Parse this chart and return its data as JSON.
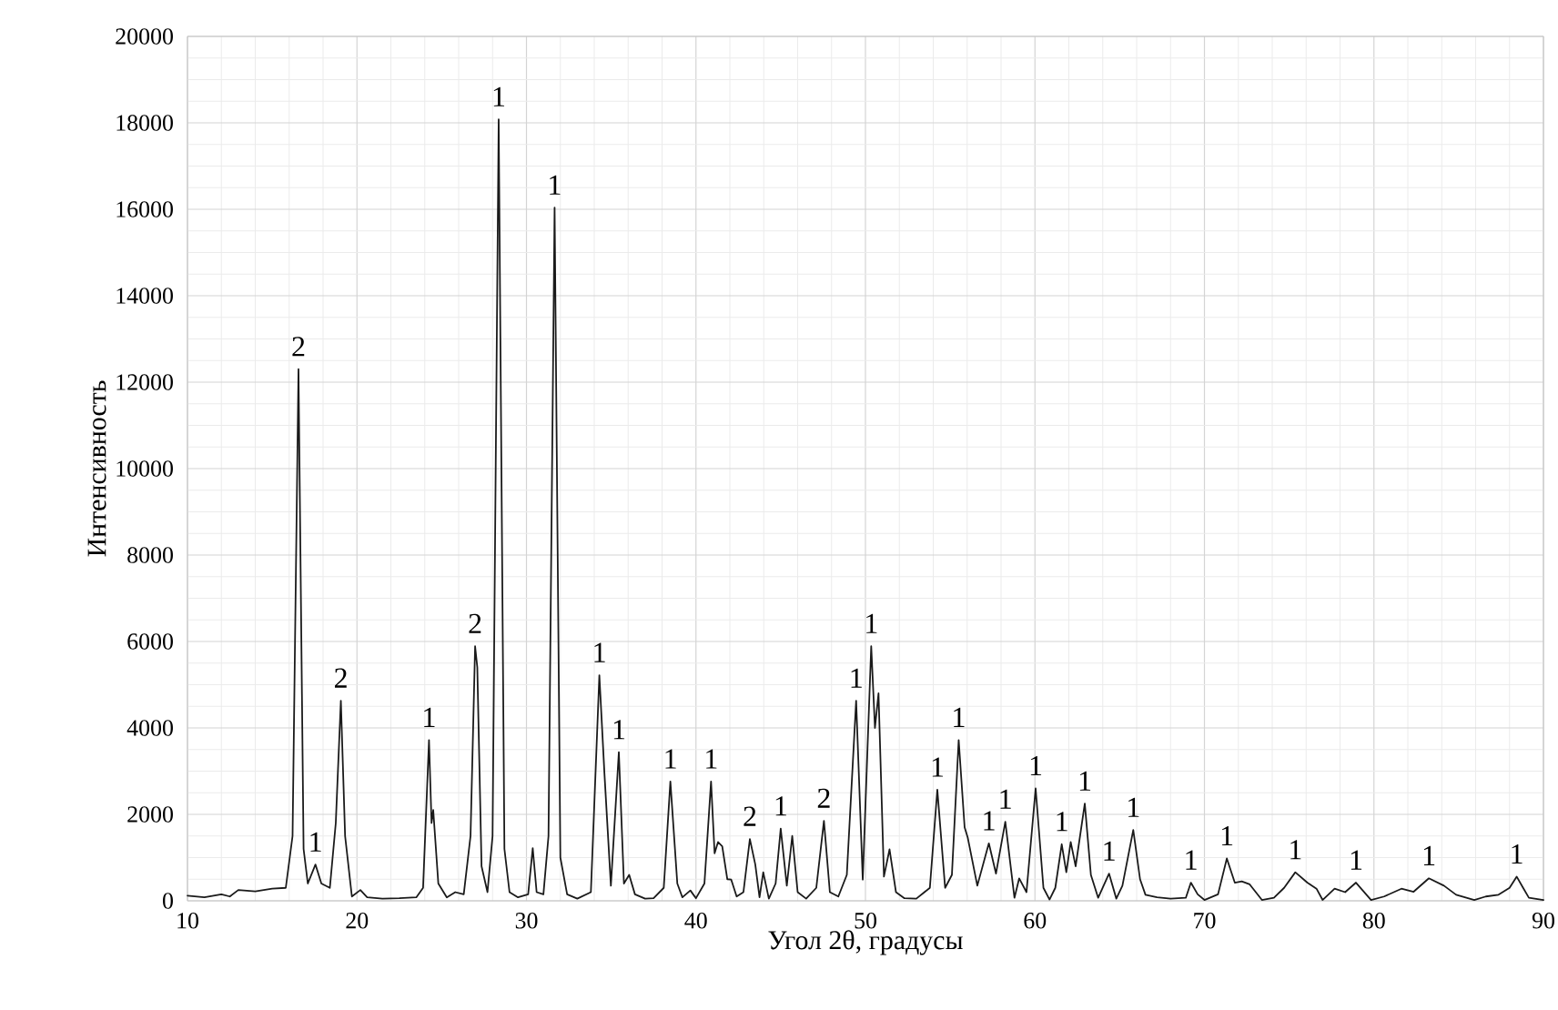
{
  "chart_data": {
    "type": "line",
    "xlabel": "Угол 2θ, градусы",
    "ylabel": "Интенсивность",
    "color": "#1a1a1a",
    "grid": true,
    "xlim": [
      10,
      90
    ],
    "ylim": [
      0,
      20000
    ],
    "xticks": [
      10,
      20,
      30,
      40,
      50,
      60,
      70,
      80,
      90
    ],
    "yticks": [
      0,
      2000,
      4000,
      6000,
      8000,
      10000,
      12000,
      14000,
      16000,
      18000,
      20000
    ],
    "x": [
      10,
      11,
      12,
      12.5,
      13,
      14,
      15,
      15.8,
      16.2,
      16.55,
      16.85,
      17.1,
      17.55,
      17.9,
      18.4,
      18.75,
      19.05,
      19.3,
      19.7,
      20.2,
      20.6,
      21.5,
      22.5,
      23.5,
      23.9,
      24.25,
      24.4,
      24.5,
      24.8,
      25.3,
      25.8,
      26.3,
      26.7,
      26.97,
      27.1,
      27.35,
      27.7,
      28.0,
      28.36,
      28.7,
      29.0,
      29.5,
      30.1,
      30.37,
      30.6,
      31.0,
      31.3,
      31.66,
      32.0,
      32.4,
      33.0,
      33.8,
      34.3,
      34.6,
      34.98,
      35.45,
      35.75,
      36.06,
      36.4,
      37.0,
      37.5,
      38.1,
      38.49,
      38.9,
      39.2,
      39.67,
      40.0,
      40.5,
      40.89,
      41.1,
      41.3,
      41.55,
      41.85,
      42.08,
      42.4,
      42.8,
      43.18,
      43.5,
      43.75,
      43.97,
      44.3,
      44.7,
      45.0,
      45.36,
      45.68,
      46.0,
      46.5,
      47.1,
      47.55,
      47.9,
      48.4,
      48.9,
      49.45,
      49.84,
      50.34,
      50.56,
      50.77,
      51.09,
      51.42,
      51.8,
      52.3,
      53.0,
      53.8,
      54.24,
      54.7,
      55.1,
      55.5,
      55.85,
      56.03,
      56.6,
      57.28,
      57.7,
      58.25,
      58.79,
      59.07,
      59.5,
      60.04,
      60.5,
      60.86,
      61.2,
      61.58,
      61.85,
      62.11,
      62.4,
      62.94,
      63.3,
      63.73,
      64.37,
      64.8,
      65.16,
      65.8,
      66.2,
      66.52,
      67.2,
      68.0,
      68.9,
      69.2,
      69.6,
      70.0,
      70.8,
      71.32,
      71.79,
      72.2,
      72.67,
      73.39,
      74.1,
      74.7,
      75.36,
      76.07,
      76.61,
      76.97,
      77.68,
      78.3,
      78.94,
      79.83,
      80.6,
      81.62,
      82.34,
      83.24,
      84.13,
      84.85,
      85.92,
      86.6,
      87.35,
      88.0,
      88.42,
      88.8,
      89.14,
      90
    ],
    "values": [
      120,
      80,
      150,
      100,
      250,
      220,
      280,
      300,
      1500,
      12300,
      1200,
      400,
      840,
      400,
      300,
      1800,
      4630,
      1500,
      100,
      250,
      80,
      50,
      60,
      80,
      300,
      3720,
      1800,
      2100,
      400,
      80,
      200,
      150,
      1500,
      5890,
      5400,
      800,
      200,
      1500,
      18080,
      1200,
      200,
      80,
      150,
      1220,
      200,
      150,
      1500,
      16040,
      1000,
      150,
      50,
      200,
      5220,
      2950,
      350,
      3440,
      400,
      600,
      150,
      50,
      60,
      300,
      2760,
      400,
      80,
      240,
      60,
      400,
      2760,
      1100,
      1360,
      1260,
      500,
      490,
      100,
      200,
      1430,
      840,
      80,
      660,
      50,
      400,
      1670,
      350,
      1500,
      200,
      50,
      300,
      1850,
      200,
      100,
      600,
      4630,
      490,
      5890,
      4000,
      4800,
      560,
      1190,
      200,
      60,
      50,
      300,
      2570,
      300,
      600,
      3720,
      1700,
      1470,
      350,
      1330,
      630,
      1830,
      70,
      520,
      200,
      2600,
      300,
      30,
      300,
      1310,
      660,
      1360,
      800,
      2250,
      600,
      70,
      630,
      50,
      350,
      1640,
      500,
      140,
      80,
      50,
      70,
      420,
      150,
      20,
      150,
      980,
      420,
      450,
      380,
      20,
      70,
      300,
      660,
      420,
      280,
      20,
      280,
      200,
      420,
      20,
      100,
      280,
      210,
      520,
      350,
      140,
      20,
      100,
      140,
      300,
      560,
      300,
      70,
      20
    ],
    "annotations": [
      {
        "text": "2",
        "x": 16.55,
        "y": 12300
      },
      {
        "text": "1",
        "x": 17.55,
        "y": 840
      },
      {
        "text": "2",
        "x": 19.05,
        "y": 4630
      },
      {
        "text": "1",
        "x": 24.25,
        "y": 3720
      },
      {
        "text": "2",
        "x": 26.97,
        "y": 5890
      },
      {
        "text": "1",
        "x": 28.36,
        "y": 18080
      },
      {
        "text": "1",
        "x": 31.66,
        "y": 16040
      },
      {
        "text": "1",
        "x": 34.3,
        "y": 5220
      },
      {
        "text": "1",
        "x": 35.45,
        "y": 3440
      },
      {
        "text": "1",
        "x": 38.49,
        "y": 2760
      },
      {
        "text": "1",
        "x": 40.89,
        "y": 2760
      },
      {
        "text": "2",
        "x": 43.18,
        "y": 1430
      },
      {
        "text": "1",
        "x": 45.0,
        "y": 1670
      },
      {
        "text": "2",
        "x": 47.55,
        "y": 1850
      },
      {
        "text": "1",
        "x": 49.45,
        "y": 4630
      },
      {
        "text": "1",
        "x": 50.34,
        "y": 5890
      },
      {
        "text": "1",
        "x": 54.24,
        "y": 2570
      },
      {
        "text": "1",
        "x": 55.5,
        "y": 3720
      },
      {
        "text": "1",
        "x": 57.28,
        "y": 1330
      },
      {
        "text": "1",
        "x": 58.25,
        "y": 1830
      },
      {
        "text": "1",
        "x": 60.04,
        "y": 2600
      },
      {
        "text": "1",
        "x": 61.58,
        "y": 1310
      },
      {
        "text": "1",
        "x": 62.94,
        "y": 2250
      },
      {
        "text": "1",
        "x": 64.37,
        "y": 630
      },
      {
        "text": "1",
        "x": 65.8,
        "y": 1640
      },
      {
        "text": "1",
        "x": 69.2,
        "y": 420
      },
      {
        "text": "1",
        "x": 71.32,
        "y": 980
      },
      {
        "text": "1",
        "x": 75.36,
        "y": 660
      },
      {
        "text": "1",
        "x": 78.94,
        "y": 420
      },
      {
        "text": "1",
        "x": 83.24,
        "y": 520
      },
      {
        "text": "1",
        "x": 88.42,
        "y": 560
      }
    ]
  }
}
